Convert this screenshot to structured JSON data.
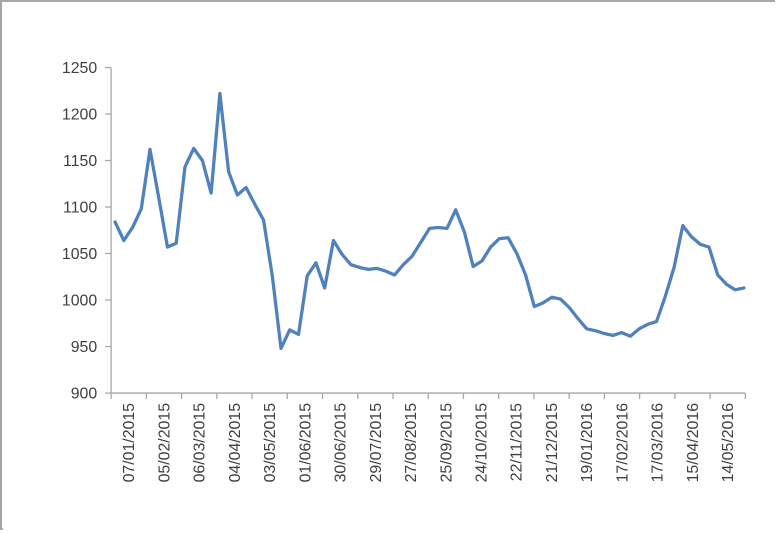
{
  "window": {
    "background_color": "#ffffff",
    "border_color": "#a6a6a6"
  },
  "chart_data": {
    "type": "line",
    "title": "",
    "xlabel": "",
    "ylabel": "",
    "legend": "none",
    "grid": false,
    "series_name": "value",
    "series_color": "#4F81BD",
    "axis_color": "#a6a6a6",
    "tick_label_color": "#404040",
    "x_tick_labels": [
      "07/01/2015",
      "05/02/2015",
      "06/03/2015",
      "04/04/2015",
      "03/05/2015",
      "01/06/2015",
      "30/06/2015",
      "29/07/2015",
      "27/08/2015",
      "25/09/2015",
      "24/10/2015",
      "22/11/2015",
      "21/12/2015",
      "19/01/2016",
      "17/02/2016",
      "17/03/2016",
      "15/04/2016",
      "14/05/2016"
    ],
    "y_tick_labels": [
      900,
      950,
      1000,
      1050,
      1100,
      1150,
      1200,
      1250
    ],
    "ylim": [
      900,
      1250
    ],
    "y_step": 50,
    "values": [
      1084,
      1064,
      1078,
      1098,
      1162,
      1110,
      1057,
      1061,
      1143,
      1163,
      1150,
      1115,
      1222,
      1138,
      1113,
      1121,
      1103,
      1086,
      1026,
      948,
      968,
      963,
      1026,
      1040,
      1013,
      1064,
      1049,
      1038,
      1035,
      1033,
      1034,
      1031,
      1027,
      1038,
      1047,
      1062,
      1077,
      1078,
      1077,
      1097,
      1073,
      1036,
      1042,
      1057,
      1066,
      1067,
      1050,
      1027,
      993,
      997,
      1003,
      1001,
      992,
      980,
      969,
      967,
      964,
      962,
      965,
      961,
      969,
      974,
      977,
      1004,
      1035,
      1080,
      1068,
      1060,
      1057,
      1027,
      1017,
      1011,
      1013
    ]
  }
}
